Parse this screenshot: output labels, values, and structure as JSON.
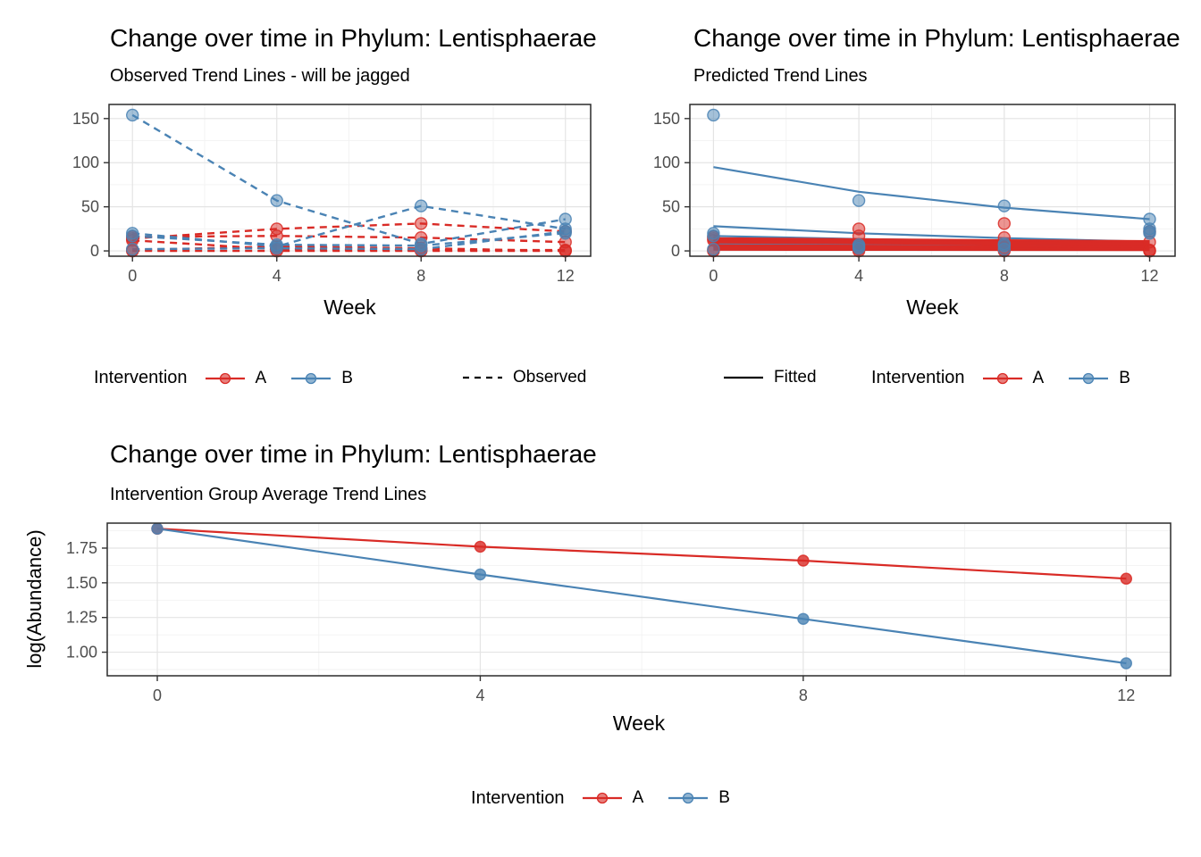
{
  "colors": {
    "intervention_a": "#D92B26",
    "intervention_b": "#4A83B4",
    "axis_text": "#4D4D4D",
    "grid_major": "#E4E4E4",
    "grid_minor": "#F2F2F2",
    "panel_border": "#2B2B2B",
    "legend_black": "#000000",
    "background": "#FFFFFF"
  },
  "chart_data": [
    {
      "id": "observed",
      "type": "line",
      "title": "Change over time in Phylum: Lentisphaerae",
      "subtitle": "Observed Trend Lines - will be jagged",
      "xlabel": "Week",
      "ylabel": "",
      "line_style": "dashed",
      "x": [
        0,
        4,
        8,
        12
      ],
      "x_ticks": [
        0,
        4,
        8,
        12
      ],
      "x_tick_labels": [
        "0",
        "4",
        "8",
        "12"
      ],
      "x_minor": [
        2,
        6,
        10
      ],
      "xlim": [
        -0.65,
        12.7
      ],
      "y_ticks": [
        0,
        50,
        100,
        150
      ],
      "y_tick_labels": [
        "0",
        "50",
        "100",
        "150"
      ],
      "y_minor": [
        25,
        75,
        125
      ],
      "ylim": [
        -6,
        166
      ],
      "grid": true,
      "legend_position": "bottom",
      "lines": [
        {
          "group": "A",
          "name": "A-subject-1",
          "values": [
            14,
            25,
            31,
            22
          ]
        },
        {
          "group": "A",
          "name": "A-subject-2",
          "values": [
            16,
            17,
            15,
            10
          ]
        },
        {
          "group": "A",
          "name": "A-subject-3",
          "values": [
            12,
            2,
            1,
            1
          ]
        },
        {
          "group": "A",
          "name": "A-subject-4",
          "values": [
            1,
            5,
            3,
            0
          ]
        },
        {
          "group": "A",
          "name": "A-subject-5",
          "values": [
            0,
            0,
            0,
            0
          ]
        },
        {
          "group": "B",
          "name": "B-subject-1",
          "values": [
            154,
            57,
            8,
            36
          ]
        },
        {
          "group": "B",
          "name": "B-subject-2",
          "values": [
            20,
            5,
            51,
            25
          ]
        },
        {
          "group": "B",
          "name": "B-subject-3",
          "values": [
            17,
            7,
            6,
            20
          ]
        },
        {
          "group": "B",
          "name": "B-subject-4",
          "values": [
            2,
            3,
            2,
            22
          ]
        }
      ],
      "point_series": [
        {
          "group": "A",
          "values": [
            14,
            25,
            31,
            22
          ]
        },
        {
          "group": "A",
          "values": [
            16,
            17,
            15,
            10
          ]
        },
        {
          "group": "A",
          "values": [
            12,
            2,
            1,
            1
          ]
        },
        {
          "group": "A",
          "values": [
            1,
            5,
            3,
            0
          ]
        },
        {
          "group": "A",
          "values": [
            0,
            0,
            0,
            0
          ]
        },
        {
          "group": "B",
          "values": [
            154,
            57,
            8,
            36
          ]
        },
        {
          "group": "B",
          "values": [
            20,
            5,
            51,
            25
          ]
        },
        {
          "group": "B",
          "values": [
            17,
            7,
            6,
            20
          ]
        },
        {
          "group": "B",
          "values": [
            2,
            3,
            2,
            22
          ]
        }
      ]
    },
    {
      "id": "predicted",
      "type": "line",
      "title": "Change over time in Phylum: Lentisphaerae",
      "subtitle": "Predicted Trend Lines",
      "xlabel": "Week",
      "ylabel": "",
      "line_style": "solid",
      "x": [
        0,
        4,
        8,
        12
      ],
      "x_ticks": [
        0,
        4,
        8,
        12
      ],
      "x_tick_labels": [
        "0",
        "4",
        "8",
        "12"
      ],
      "x_minor": [
        2,
        6,
        10
      ],
      "xlim": [
        -0.65,
        12.7
      ],
      "y_ticks": [
        0,
        50,
        100,
        150
      ],
      "y_tick_labels": [
        "0",
        "50",
        "100",
        "150"
      ],
      "y_minor": [
        25,
        75,
        125
      ],
      "ylim": [
        -6,
        166
      ],
      "grid": true,
      "legend_position": "bottom",
      "lines": [
        {
          "group": "B",
          "name": "B-fit-1",
          "values": [
            95,
            67,
            49,
            36
          ]
        },
        {
          "group": "B",
          "name": "B-fit-2",
          "values": [
            28,
            20,
            14.5,
            10.5
          ]
        },
        {
          "group": "B",
          "name": "B-fit-3",
          "values": [
            17,
            13.5,
            11,
            9
          ]
        },
        {
          "group": "B",
          "name": "B-fit-4",
          "values": [
            8,
            7.2,
            6.5,
            6
          ]
        },
        {
          "group": "A",
          "name": "A-fit-1",
          "values": [
            13.5,
            12.3,
            11.2,
            10.2
          ]
        },
        {
          "group": "A",
          "name": "A-fit-2",
          "values": [
            10.5,
            9.5,
            8.6,
            7.8
          ]
        },
        {
          "group": "A",
          "name": "A-fit-3",
          "values": [
            5.5,
            5,
            4.6,
            4.2
          ]
        },
        {
          "group": "A",
          "name": "A-fit-4",
          "values": [
            2.2,
            2.1,
            2,
            1.9
          ]
        }
      ],
      "point_series": [
        {
          "group": "A",
          "values": [
            14,
            25,
            31,
            22
          ]
        },
        {
          "group": "A",
          "values": [
            16,
            17,
            15,
            10
          ]
        },
        {
          "group": "A",
          "values": [
            12,
            2,
            1,
            1
          ]
        },
        {
          "group": "A",
          "values": [
            1,
            5,
            3,
            0
          ]
        },
        {
          "group": "A",
          "values": [
            0,
            0,
            0,
            0
          ]
        },
        {
          "group": "B",
          "values": [
            154,
            57,
            8,
            36
          ]
        },
        {
          "group": "B",
          "values": [
            20,
            5,
            51,
            25
          ]
        },
        {
          "group": "B",
          "values": [
            17,
            7,
            6,
            20
          ]
        },
        {
          "group": "B",
          "values": [
            2,
            3,
            2,
            22
          ]
        }
      ]
    },
    {
      "id": "average",
      "type": "line",
      "title": "Change over time in Phylum: Lentisphaerae",
      "subtitle": "Intervention Group Average Trend Lines",
      "xlabel": "Week",
      "ylabel": "log(Abundance)",
      "line_style": "solid",
      "x": [
        0,
        4,
        8,
        12
      ],
      "x_ticks": [
        0,
        4,
        8,
        12
      ],
      "x_tick_labels": [
        "0",
        "4",
        "8",
        "12"
      ],
      "x_minor": [
        2,
        6,
        10
      ],
      "xlim": [
        -0.62,
        12.55
      ],
      "y_ticks": [
        1.0,
        1.25,
        1.5,
        1.75
      ],
      "y_tick_labels": [
        "1.00",
        "1.25",
        "1.50",
        "1.75"
      ],
      "y_minor": [
        0.875,
        1.125,
        1.375,
        1.625,
        1.875
      ],
      "ylim": [
        0.83,
        1.93
      ],
      "grid": true,
      "legend_position": "bottom",
      "lines": [
        {
          "group": "A",
          "name": "A-mean",
          "values": [
            1.89,
            1.76,
            1.66,
            1.53
          ]
        },
        {
          "group": "B",
          "name": "B-mean",
          "values": [
            1.89,
            1.56,
            1.24,
            0.92
          ]
        }
      ],
      "point_series": [
        {
          "group": "A",
          "values": [
            1.89,
            1.76,
            1.66,
            1.53
          ]
        },
        {
          "group": "B",
          "values": [
            1.89,
            1.56,
            1.24,
            0.92
          ]
        }
      ]
    }
  ],
  "legends": [
    {
      "title": "Intervention",
      "items": [
        {
          "label": "A"
        },
        {
          "label": "B"
        }
      ],
      "linetype_label": "Observed"
    },
    {
      "title": "Intervention",
      "items": [
        {
          "label": "A"
        },
        {
          "label": "B"
        }
      ],
      "linetype_label": "Fitted"
    },
    {
      "title": "Intervention",
      "items": [
        {
          "label": "A"
        },
        {
          "label": "B"
        }
      ]
    }
  ]
}
